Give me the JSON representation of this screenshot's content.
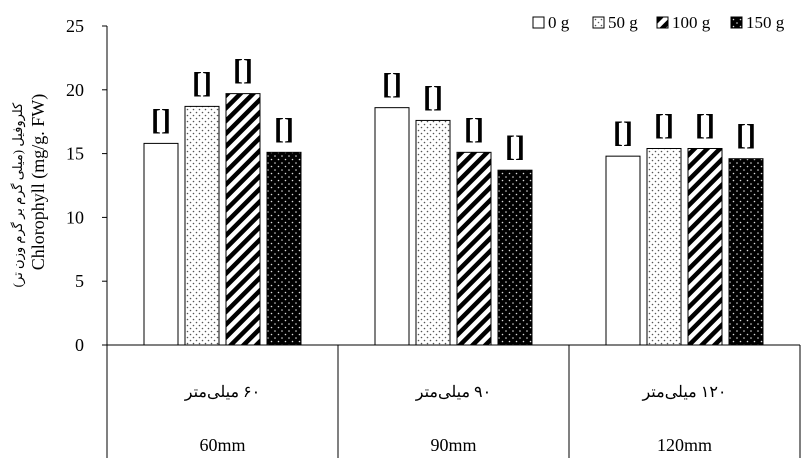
{
  "chart_data": {
    "type": "bar",
    "title": "",
    "ylabel_fa": "کلروفیل (میلی گرم بر گرم وزن تر)",
    "ylabel_en": "Chlorophyll (mg/g. FW)",
    "ylim": [
      0,
      25
    ],
    "yticks": [
      0,
      5,
      10,
      15,
      20,
      25
    ],
    "grid": false,
    "legend_position": "top-right",
    "categories": [
      {
        "label_fa": "۶۰ میلی‌متر",
        "label_en": "60mm"
      },
      {
        "label_fa": "۹۰ میلی‌متر",
        "label_en": "90mm"
      },
      {
        "label_fa": "۱۲۰ میلی‌متر",
        "label_en": "120mm"
      }
    ],
    "series": [
      {
        "name": "0 g",
        "pattern": "white",
        "values": [
          15.8,
          18.6,
          14.8
        ]
      },
      {
        "name": "50 g",
        "pattern": "dots",
        "values": [
          18.7,
          17.6,
          15.4
        ]
      },
      {
        "name": "100 g",
        "pattern": "hatch",
        "values": [
          19.7,
          15.1,
          15.4
        ]
      },
      {
        "name": "150 g",
        "pattern": "black-dots",
        "values": [
          15.1,
          13.7,
          14.6
        ]
      }
    ],
    "annotations": {
      "letters": "[]",
      "values": [
        [
          "[]",
          "[]",
          "[]",
          "[]"
        ],
        [
          "[]",
          "[]",
          "[]",
          "[]"
        ],
        [
          "[]",
          "[]",
          "[]",
          "[]"
        ]
      ]
    }
  }
}
